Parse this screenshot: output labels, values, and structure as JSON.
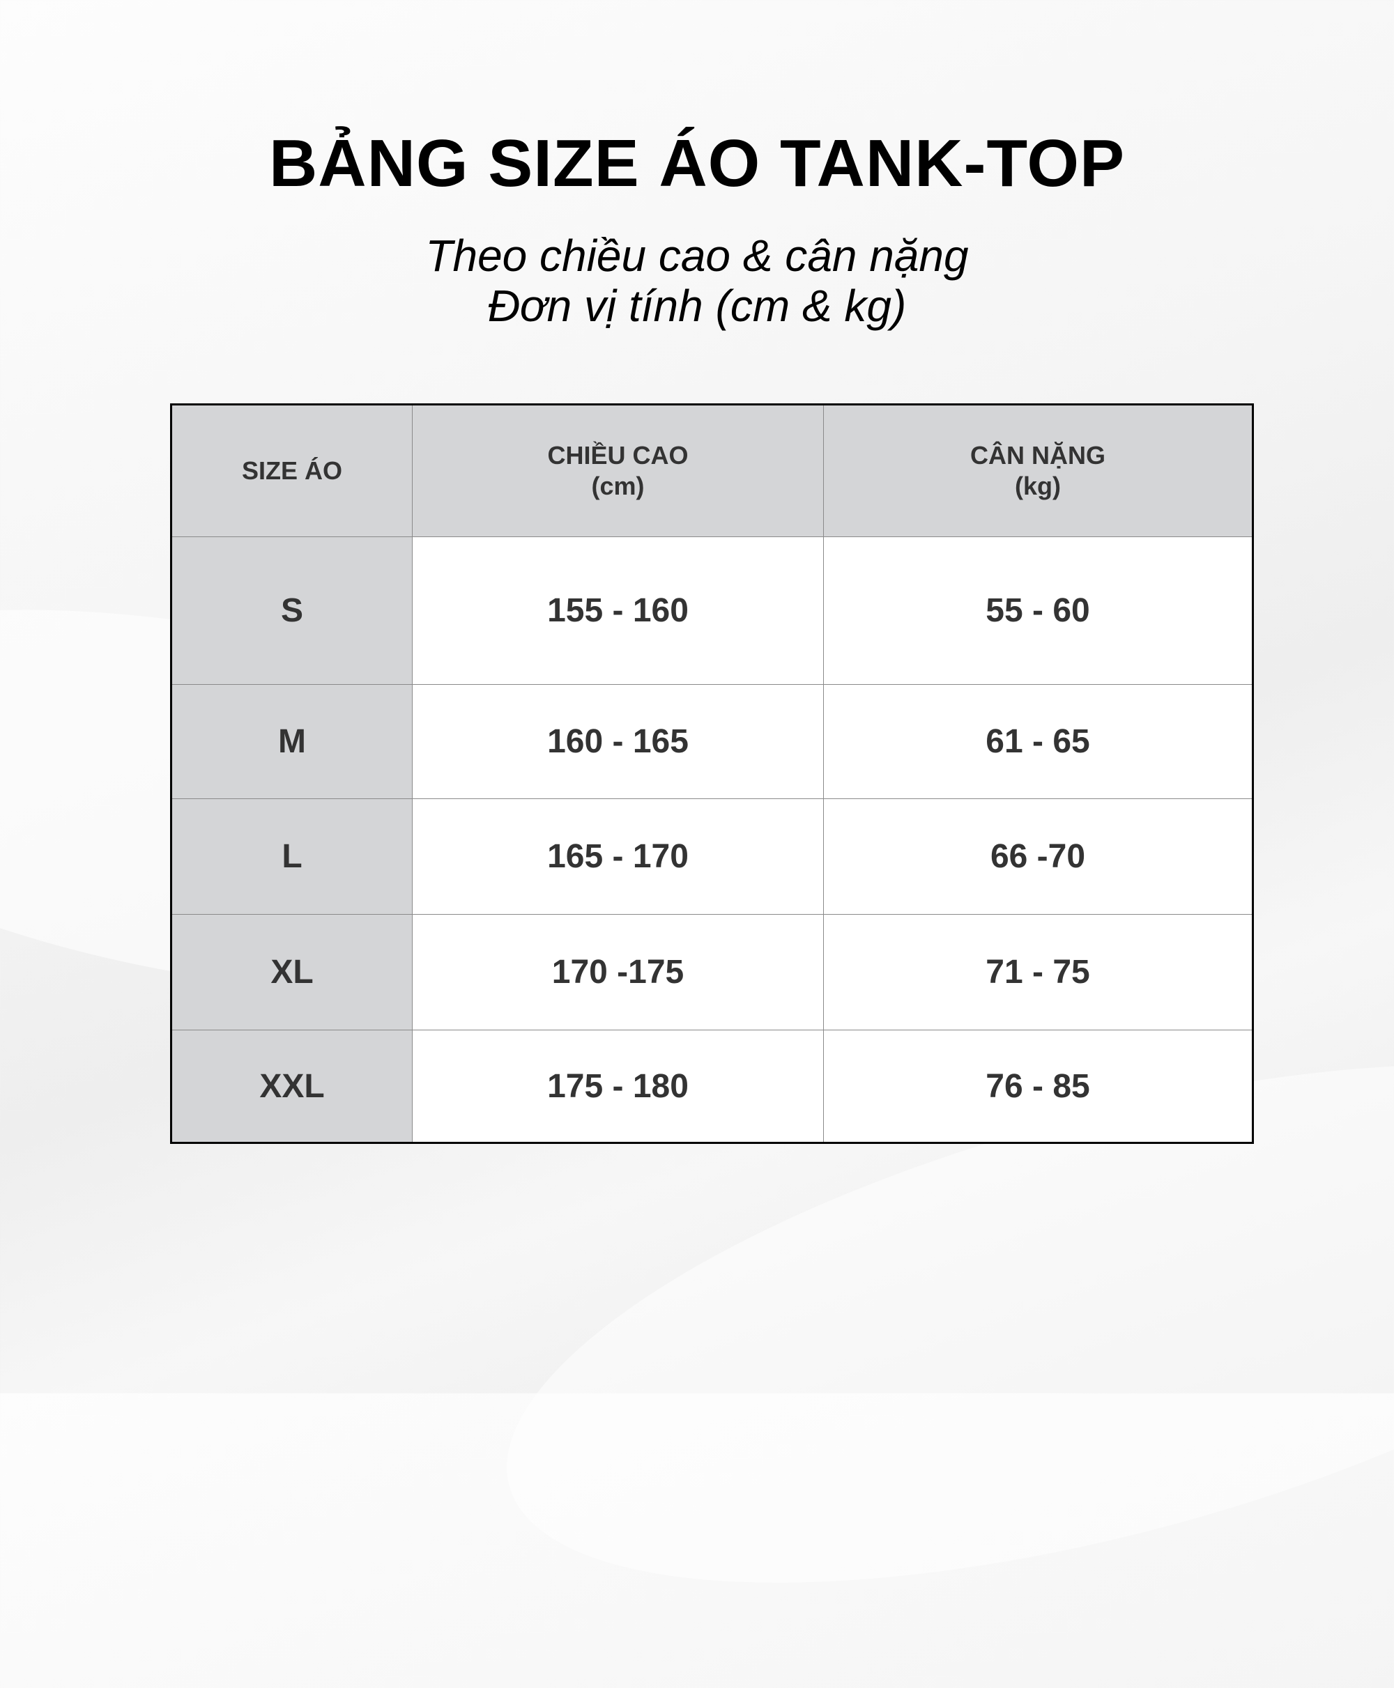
{
  "title": "BẢNG SIZE ÁO TANK-TOP",
  "subtitle_line1": "Theo chiều cao & cân nặng",
  "subtitle_line2": "Đơn vị tính (cm & kg)",
  "table": {
    "headers": [
      {
        "line1": "SIZE ÁO",
        "line2": ""
      },
      {
        "line1": "CHIỀU CAO",
        "line2": "(cm)"
      },
      {
        "line1": "CÂN NẶNG",
        "line2": "(kg)"
      }
    ],
    "rows": [
      {
        "size": "S",
        "height": "155 - 160",
        "weight": "55 - 60"
      },
      {
        "size": "M",
        "height": "160 - 165",
        "weight": "61 - 65"
      },
      {
        "size": "L",
        "height": "165 - 170",
        "weight": "66 -70"
      },
      {
        "size": "XL",
        "height": "170 -175",
        "weight": "71 - 75"
      },
      {
        "size": "XXL",
        "height": "175 - 180",
        "weight": "76 - 85"
      }
    ]
  },
  "colors": {
    "header_bg": "#d4d5d7",
    "text": "#333333",
    "border": "#000000"
  }
}
